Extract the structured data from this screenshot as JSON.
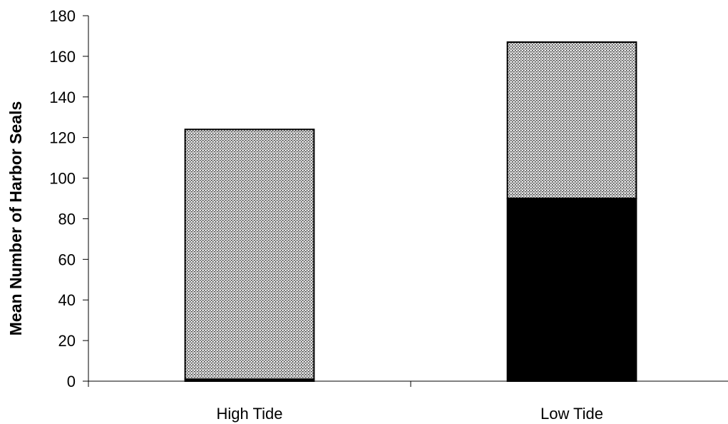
{
  "chart_data": {
    "type": "bar",
    "stacked": true,
    "title": "",
    "xlabel": "",
    "ylabel": "Mean Number of Harbor Seals",
    "ylim": [
      0,
      180
    ],
    "yticks": [
      0,
      20,
      40,
      60,
      80,
      100,
      120,
      140,
      160,
      180
    ],
    "grid": false,
    "legend": "none",
    "categories": [
      "High Tide",
      "Low Tide"
    ],
    "series": [
      {
        "values": [
          1,
          90
        ],
        "color": "#000000",
        "pattern": "solid"
      },
      {
        "values": [
          123,
          77
        ],
        "color": "#b4b4b4",
        "pattern": "dotted-stipple"
      }
    ]
  }
}
